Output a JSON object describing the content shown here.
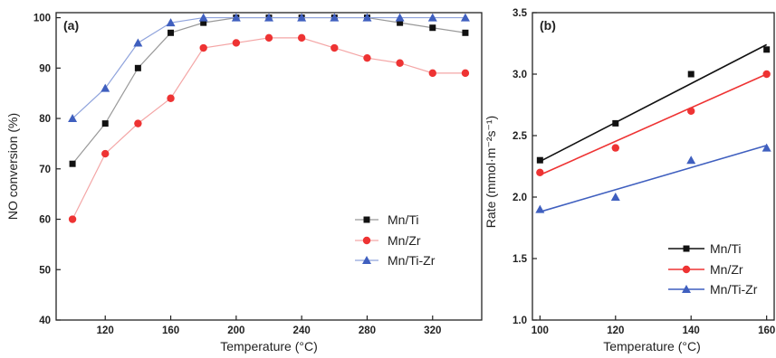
{
  "chart_data": [
    {
      "type": "line",
      "panel_label": "(a)",
      "xlabel": "Temperature (°C)",
      "ylabel": "NO conversion (%)",
      "xlim": [
        90,
        350
      ],
      "ylim": [
        40,
        101
      ],
      "xticks": [
        120,
        160,
        200,
        240,
        280,
        320
      ],
      "yticks": [
        40,
        50,
        60,
        70,
        80,
        90,
        100
      ],
      "x": [
        100,
        120,
        140,
        160,
        180,
        200,
        220,
        240,
        260,
        280,
        300,
        320,
        340
      ],
      "series": [
        {
          "name": "Mn/Ti",
          "color": "#111111",
          "line_color": "#999999",
          "marker": "square",
          "values": [
            71,
            79,
            90,
            97,
            99,
            100,
            100,
            100,
            100,
            100,
            99,
            98,
            97
          ]
        },
        {
          "name": "Mn/Zr",
          "color": "#ee3333",
          "line_color": "#f4a6a6",
          "marker": "circle",
          "values": [
            60,
            73,
            79,
            84,
            94,
            95,
            96,
            96,
            94,
            92,
            91,
            89,
            89
          ]
        },
        {
          "name": "Mn/Ti-Zr",
          "color": "#3f5fbf",
          "line_color": "#8fa3dc",
          "marker": "triangle",
          "values": [
            80,
            86,
            95,
            99,
            100,
            100,
            100,
            100,
            100,
            100,
            100,
            100,
            100
          ]
        }
      ],
      "legend": "center-right",
      "grid": false
    },
    {
      "type": "scatter",
      "panel_label": "(b)",
      "xlabel": "Temperature (°C)",
      "ylabel": "Rate (mmol·m⁻²s⁻¹)",
      "xlim": [
        98,
        162
      ],
      "ylim": [
        1.0,
        3.5
      ],
      "xticks": [
        100,
        120,
        140,
        160
      ],
      "yticks": [
        1.0,
        1.5,
        2.0,
        2.5,
        3.0,
        3.5
      ],
      "x": [
        100,
        120,
        140,
        160
      ],
      "series": [
        {
          "name": "Mn/Ti",
          "color": "#111111",
          "line_color": "#111111",
          "marker": "square",
          "values": [
            2.3,
            2.6,
            3.0,
            3.2
          ],
          "fit": [
            2.29,
            3.24
          ]
        },
        {
          "name": "Mn/Zr",
          "color": "#ee3333",
          "line_color": "#ee3333",
          "marker": "circle",
          "values": [
            2.2,
            2.4,
            2.7,
            3.0
          ],
          "fit": [
            2.18,
            3.0
          ]
        },
        {
          "name": "Mn/Ti-Zr",
          "color": "#3f5fbf",
          "line_color": "#3f5fbf",
          "marker": "triangle",
          "values": [
            1.9,
            2.0,
            2.3,
            2.4
          ],
          "fit": [
            1.88,
            2.42
          ]
        }
      ],
      "legend": "bottom-right",
      "grid": false
    }
  ]
}
